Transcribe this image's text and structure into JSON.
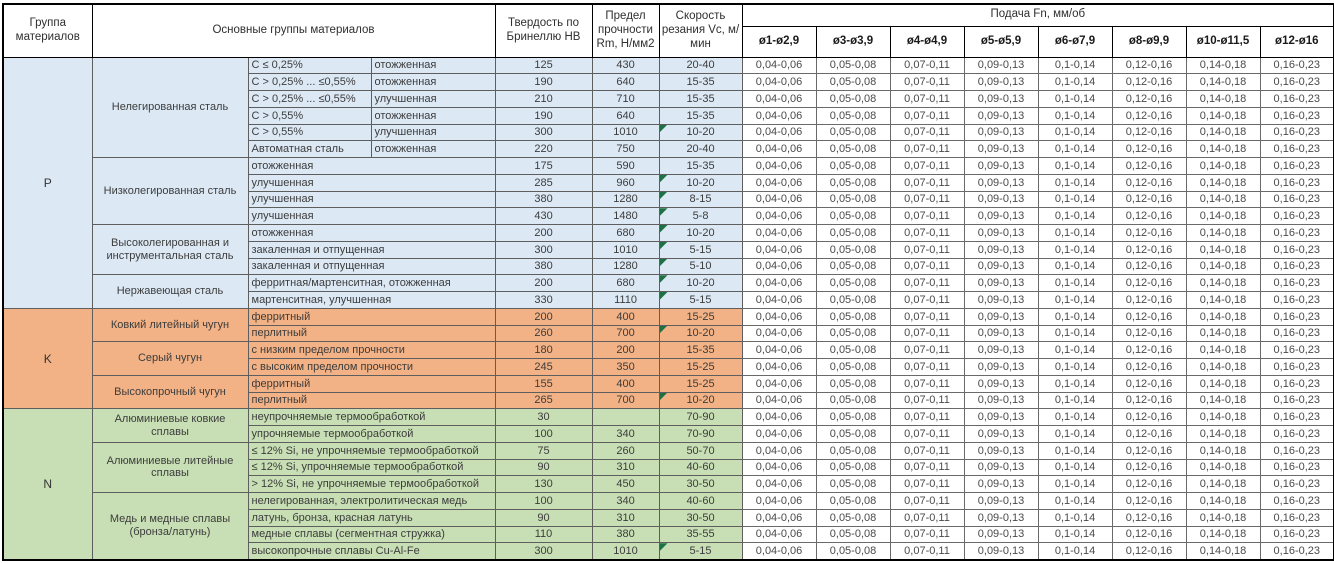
{
  "header": {
    "col_material_group": "Группа материалов",
    "col_main_groups": "Основные группы материалов",
    "col_hardness": "Твердость по Бринеллю HB",
    "col_strength": "Предел прочности Rm, Н/мм2",
    "col_speed": "Скорость резания Vc, м/мин",
    "feed_title": "Подача Fn, мм/об",
    "feed_columns": [
      "ø1-ø2,9",
      "ø3-ø3,9",
      "ø4-ø4,9",
      "ø5-ø5,9",
      "ø6-ø7,9",
      "ø8-ø9,9",
      "ø10-ø11,5",
      "ø12-ø16"
    ]
  },
  "feed_values": [
    "0,04-0,06",
    "0,05-0,08",
    "0,07-0,11",
    "0,09-0,13",
    "0,1-0,14",
    "0,12-0,16",
    "0,14-0,18",
    "0,16-0,23"
  ],
  "colors": {
    "section_p": "#dce9f5",
    "section_k": "#f2b285",
    "section_n": "#c8dfb5",
    "flag_marker": "#1e7145"
  },
  "sections": [
    {
      "group": "P",
      "color": "#dce9f5",
      "subgroups": [
        {
          "name": "Нелегированная сталь",
          "rows": [
            {
              "cond": [
                "C ≤ 0,25%",
                "отожженная"
              ],
              "hb": "125",
              "rm": "430",
              "vc": "20-40",
              "marker": false
            },
            {
              "cond": [
                "C > 0,25% ... ≤0,55%",
                "отожженная"
              ],
              "hb": "190",
              "rm": "640",
              "vc": "15-35",
              "marker": false
            },
            {
              "cond": [
                "C > 0,25% ... ≤0,55%",
                "улучшенная"
              ],
              "hb": "210",
              "rm": "710",
              "vc": "15-35",
              "marker": false
            },
            {
              "cond": [
                "C > 0,55%",
                "отожженная"
              ],
              "hb": "190",
              "rm": "640",
              "vc": "15-35",
              "marker": false
            },
            {
              "cond": [
                "C > 0,55%",
                "улучшенная"
              ],
              "hb": "300",
              "rm": "1010",
              "vc": "10-20",
              "marker": true
            },
            {
              "cond": [
                "Автоматная сталь",
                "отожженная"
              ],
              "hb": "220",
              "rm": "750",
              "vc": "20-40",
              "marker": false
            }
          ]
        },
        {
          "name": "Низколегированная сталь",
          "rows": [
            {
              "cond": [
                "отожженная"
              ],
              "hb": "175",
              "rm": "590",
              "vc": "15-35",
              "marker": false
            },
            {
              "cond": [
                "улучшенная"
              ],
              "hb": "285",
              "rm": "960",
              "vc": "10-20",
              "marker": true
            },
            {
              "cond": [
                "улучшенная"
              ],
              "hb": "380",
              "rm": "1280",
              "vc": "8-15",
              "marker": true
            },
            {
              "cond": [
                "улучшенная"
              ],
              "hb": "430",
              "rm": "1480",
              "vc": "5-8",
              "marker": true
            }
          ]
        },
        {
          "name": "Высоколегированная и инструментальная сталь",
          "rows": [
            {
              "cond": [
                "отожженная"
              ],
              "hb": "200",
              "rm": "680",
              "vc": "10-20",
              "marker": true
            },
            {
              "cond": [
                "закаленная и отпущенная"
              ],
              "hb": "300",
              "rm": "1010",
              "vc": "5-15",
              "marker": true
            },
            {
              "cond": [
                "закаленная и отпущенная"
              ],
              "hb": "380",
              "rm": "1280",
              "vc": "5-10",
              "marker": true
            }
          ]
        },
        {
          "name": "Нержавеющая сталь",
          "rows": [
            {
              "cond": [
                "ферритная/мартенситная, отожженная"
              ],
              "hb": "200",
              "rm": "680",
              "vc": "10-20",
              "marker": true
            },
            {
              "cond": [
                "мартенситная, улучшенная"
              ],
              "hb": "330",
              "rm": "1110",
              "vc": "5-15",
              "marker": true
            }
          ]
        }
      ]
    },
    {
      "group": "K",
      "color": "#f2b285",
      "subgroups": [
        {
          "name": "Ковкий литейный чугун",
          "rows": [
            {
              "cond": [
                "ферритный"
              ],
              "hb": "200",
              "rm": "400",
              "vc": "15-25",
              "marker": false
            },
            {
              "cond": [
                "перлитный"
              ],
              "hb": "260",
              "rm": "700",
              "vc": "10-20",
              "marker": true
            }
          ]
        },
        {
          "name": "Серый чугун",
          "rows": [
            {
              "cond": [
                "с низким пределом прочности"
              ],
              "hb": "180",
              "rm": "200",
              "vc": "15-35",
              "marker": false
            },
            {
              "cond": [
                "с высоким пределом прочности"
              ],
              "hb": "245",
              "rm": "350",
              "vc": "15-25",
              "marker": false
            }
          ]
        },
        {
          "name": "Высокопрочный чугун",
          "rows": [
            {
              "cond": [
                "ферритный"
              ],
              "hb": "155",
              "rm": "400",
              "vc": "15-25",
              "marker": false
            },
            {
              "cond": [
                "перлитный"
              ],
              "hb": "265",
              "rm": "700",
              "vc": "10-20",
              "marker": true
            }
          ]
        }
      ]
    },
    {
      "group": "N",
      "color": "#c8dfb5",
      "subgroups": [
        {
          "name": "Алюминиевые ковкие сплавы",
          "rows": [
            {
              "cond": [
                "неупрочняемые термообработкой"
              ],
              "hb": "30",
              "rm": "",
              "vc": "70-90",
              "marker": false
            },
            {
              "cond": [
                "упрочняемые термообработкой"
              ],
              "hb": "100",
              "rm": "340",
              "vc": "70-90",
              "marker": false
            }
          ]
        },
        {
          "name": "Алюминиевые литейные сплавы",
          "rows": [
            {
              "cond": [
                "≤ 12% Si, не упрочняемые термообработкой"
              ],
              "hb": "75",
              "rm": "260",
              "vc": "50-70",
              "marker": false
            },
            {
              "cond": [
                "≤ 12% Si, упрочняемые термообработкой"
              ],
              "hb": "90",
              "rm": "310",
              "vc": "40-60",
              "marker": false
            },
            {
              "cond": [
                "> 12% Si, не упрочняемые термообработкой"
              ],
              "hb": "130",
              "rm": "450",
              "vc": "30-50",
              "marker": false
            }
          ]
        },
        {
          "name": "Медь и медные сплавы (бронза/латунь)",
          "rows": [
            {
              "cond": [
                "нелегированная, электролитическая медь"
              ],
              "hb": "100",
              "rm": "340",
              "vc": "40-60",
              "marker": false
            },
            {
              "cond": [
                "латунь, бронза, красная латунь"
              ],
              "hb": "90",
              "rm": "310",
              "vc": "30-50",
              "marker": false
            },
            {
              "cond": [
                "медные сплавы (сегментная стружка)"
              ],
              "hb": "110",
              "rm": "380",
              "vc": "35-55",
              "marker": false
            },
            {
              "cond": [
                "высокопрочные сплавы Cu-Al-Fe"
              ],
              "hb": "300",
              "rm": "1010",
              "vc": "5-15",
              "marker": true
            }
          ]
        }
      ]
    }
  ]
}
